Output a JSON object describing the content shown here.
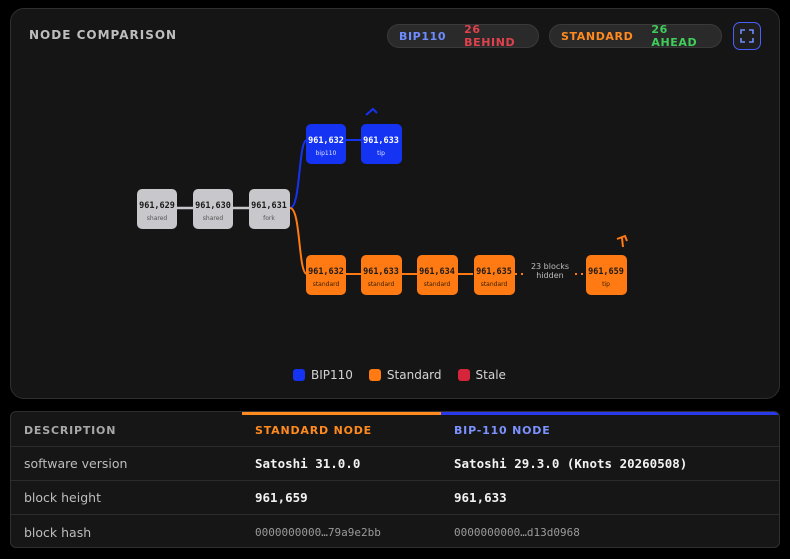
{
  "header": {
    "title": "NODE COMPARISON",
    "bip_pill": {
      "label": "BIP110",
      "status": "26 BEHIND"
    },
    "std_pill": {
      "label": "STANDARD",
      "status": "26 AHEAD"
    },
    "expand_icon": "expand-icon"
  },
  "graph": {
    "shared_blocks": [
      {
        "height": "961,629",
        "tag": "shared"
      },
      {
        "height": "961,630",
        "tag": "shared"
      },
      {
        "height": "961,631",
        "tag": "fork"
      }
    ],
    "bip_blocks": [
      {
        "height": "961,632",
        "tag": "bip110"
      },
      {
        "height": "961,633",
        "tag": "tip"
      }
    ],
    "std_blocks": [
      {
        "height": "961,632",
        "tag": "standard"
      },
      {
        "height": "961,633",
        "tag": "standard"
      },
      {
        "height": "961,634",
        "tag": "standard"
      },
      {
        "height": "961,635",
        "tag": "standard"
      },
      {
        "height": "961,659",
        "tag": "tip"
      }
    ],
    "hidden_note": [
      "23 blocks",
      "hidden"
    ],
    "colors": {
      "bip": "#1433f2",
      "standard": "#ff7a12",
      "shared": "#c8c8cc",
      "stale": "#d6243a"
    }
  },
  "legend": [
    {
      "label": "BIP110",
      "color": "#1433f2"
    },
    {
      "label": "Standard",
      "color": "#ff7a12"
    },
    {
      "label": "Stale",
      "color": "#d6243a"
    }
  ],
  "table": {
    "headers": [
      "DESCRIPTION",
      "STANDARD NODE",
      "BIP-110 NODE"
    ],
    "rows": [
      {
        "label": "software version",
        "standard": "Satoshi 31.0.0",
        "bip": "Satoshi 29.3.0 (Knots 20260508)"
      },
      {
        "label": "block height",
        "standard": "961,659",
        "bip": "961,633"
      },
      {
        "label": "block hash",
        "standard": "0000000000…79a9e2bb",
        "bip": "0000000000…d13d0968"
      }
    ]
  }
}
